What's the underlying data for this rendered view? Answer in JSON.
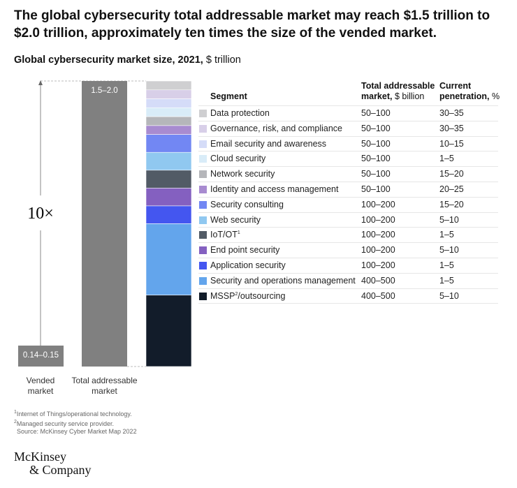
{
  "title": "The global cybersecurity total addressable market may reach $1.5 trillion to $2.0 trillion, approximately ten times the size of the vended market.",
  "subtitle": {
    "bold": "Global cybersecurity market size, 2021,",
    "unit": "$ trillion"
  },
  "chart_data": {
    "type": "bar",
    "categories": [
      "Vended market",
      "Total addressable market"
    ],
    "value_labels": [
      "0.14–0.15",
      "1.5–2.0"
    ],
    "values_range": [
      [
        0.14,
        0.15
      ],
      [
        1.5,
        2.0
      ]
    ],
    "annotation": "10×",
    "stacked_breakdown_of": "Total addressable market"
  },
  "table": {
    "headers": {
      "segment": "Segment",
      "tam_bold": "Total addressable",
      "tam_bold2": "market,",
      "tam_unit": "$ billion",
      "pen_bold": "Current",
      "pen_bold2": "penetration,",
      "pen_unit": "%"
    },
    "rows": [
      {
        "segment": "Data protection",
        "tam": "50–100",
        "penetration": "30–35",
        "color": "#cfcfd1"
      },
      {
        "segment": "Governance, risk, and compliance",
        "tam": "50–100",
        "penetration": "30–35",
        "color": "#d8cfe8"
      },
      {
        "segment": "Email security and awareness",
        "tam": "50–100",
        "penetration": "10–15",
        "color": "#d5dcf8"
      },
      {
        "segment": "Cloud security",
        "tam": "50–100",
        "penetration": "1–5",
        "color": "#d9ecf8"
      },
      {
        "segment": "Network security",
        "tam": "50–100",
        "penetration": "15–20",
        "color": "#b5b6ba"
      },
      {
        "segment": "Identity and access management",
        "tam": "50–100",
        "penetration": "20–25",
        "color": "#a88bd0"
      },
      {
        "segment": "Security consulting",
        "tam": "100–200",
        "penetration": "15–20",
        "color": "#7287f3"
      },
      {
        "segment": "Web security",
        "tam": "100–200",
        "penetration": "5–10",
        "color": "#90c8f0"
      },
      {
        "segment": "IoT/OT",
        "sup": "1",
        "tam": "100–200",
        "penetration": "1–5",
        "color": "#525b66"
      },
      {
        "segment": "End point security",
        "tam": "100–200",
        "penetration": "5–10",
        "color": "#8460c0"
      },
      {
        "segment": "Application security",
        "tam": "100–200",
        "penetration": "1–5",
        "color": "#4456f0"
      },
      {
        "segment": "Security and operations management",
        "tam": "400–500",
        "penetration": "1–5",
        "color": "#63a5ec"
      },
      {
        "segment": "MSSP",
        "sup": "2",
        "suffix": "/outsourcing",
        "tam": "400–500",
        "penetration": "5–10",
        "color": "#121c2a"
      }
    ]
  },
  "footnotes": [
    {
      "sup": "1",
      "text": "Internet of Things/operational technology."
    },
    {
      "sup": "2",
      "text": "Managed security service provider."
    },
    {
      "sup": "",
      "text": "Source: McKinsey Cyber Market Map 2022"
    }
  ],
  "logo": {
    "line1": "McKinsey",
    "line2": "& Company"
  },
  "colors": {
    "bar_gray": "#808080",
    "text": "#111111"
  }
}
